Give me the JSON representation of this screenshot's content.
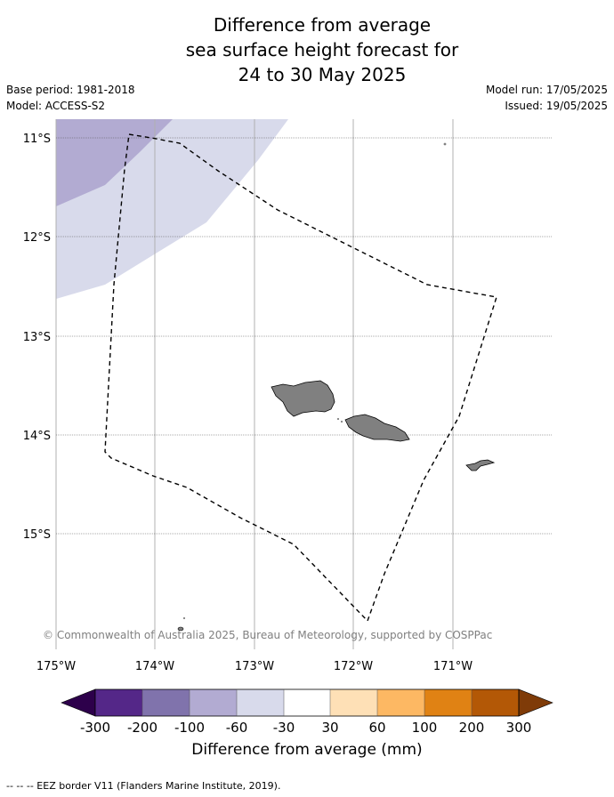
{
  "title": {
    "line1": "Difference from average",
    "line2": "sea surface height forecast for",
    "line3": "24 to 30 May 2025"
  },
  "meta": {
    "base_period": "Base period: 1981-2018",
    "model": "Model: ACCESS-S2",
    "model_run": "Model run: 17/05/2025",
    "issued": "Issued: 19/05/2025"
  },
  "map": {
    "lon_labels": [
      "175°W",
      "174°W",
      "173°W",
      "172°W",
      "171°W"
    ],
    "lat_labels": [
      "11°S",
      "12°S",
      "13°S",
      "14°S",
      "15°S"
    ],
    "land_color": "#808080",
    "copyright": "© Commonwealth of Australia 2025, Bureau of Meteorology, supported by COSPPac"
  },
  "colorbar": {
    "label": "Difference from average (mm)",
    "ticks": [
      "-300",
      "-200",
      "-100",
      "-60",
      "-30",
      "30",
      "60",
      "100",
      "200",
      "300"
    ],
    "colors": [
      "#2d004b",
      "#542788",
      "#8073ac",
      "#b2abd2",
      "#d8daeb",
      "#ffffff",
      "#fee0b6",
      "#fdb863",
      "#e08214",
      "#b35806",
      "#7f3b08"
    ]
  },
  "footer": "-- -- -- EEZ border V11 (Flanders Marine Institute, 2019)."
}
